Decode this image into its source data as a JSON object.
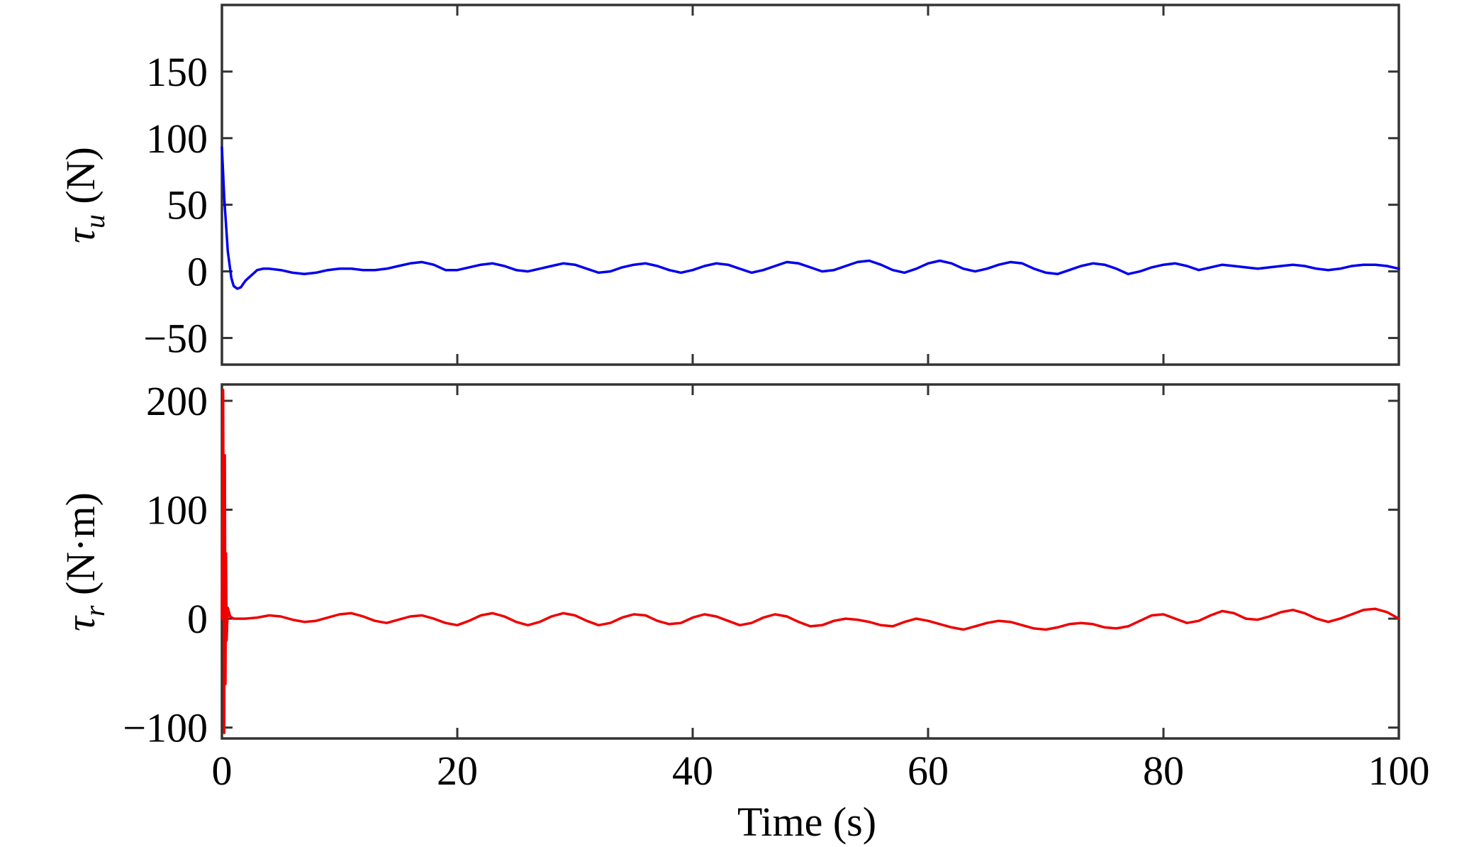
{
  "chart_data": [
    {
      "type": "line",
      "ylabel": {
        "symbol": "τ",
        "subscript": "u",
        "unit": " (N)"
      },
      "xlim": [
        0,
        100
      ],
      "ylim": [
        -70,
        200
      ],
      "yticks": [
        -50,
        0,
        50,
        100,
        150
      ],
      "ytick_labels": [
        "−50",
        "0",
        "50",
        "100",
        "150"
      ],
      "grid": false,
      "series": [
        {
          "color": "#0000ee",
          "x": [
            0,
            0.2,
            0.5,
            0.8,
            1.0,
            1.3,
            1.6,
            2.0,
            2.5,
            3.0,
            3.5,
            4.0,
            5.0,
            6.0,
            7.0,
            8.0,
            9.0,
            10.0,
            11.0,
            12.0,
            13.0,
            14.0,
            15.0,
            16.0,
            17.0,
            18.0,
            19.0,
            20.0,
            21.0,
            22.0,
            23.0,
            24.0,
            25.0,
            26.0,
            27.0,
            28.0,
            29.0,
            30.0,
            31.0,
            32.0,
            33.0,
            34.0,
            35.0,
            36.0,
            37.0,
            38.0,
            39.0,
            40.0,
            41.0,
            42.0,
            43.0,
            44.0,
            45.0,
            46.0,
            47.0,
            48.0,
            49.0,
            50.0,
            51.0,
            52.0,
            53.0,
            54.0,
            55.0,
            56.0,
            57.0,
            58.0,
            59.0,
            60.0,
            61.0,
            62.0,
            63.0,
            64.0,
            65.0,
            66.0,
            67.0,
            68.0,
            69.0,
            70.0,
            71.0,
            72.0,
            73.0,
            74.0,
            75.0,
            76.0,
            77.0,
            78.0,
            79.0,
            80.0,
            81.0,
            82.0,
            83.0,
            84.0,
            85.0,
            86.0,
            87.0,
            88.0,
            89.0,
            90.0,
            91.0,
            92.0,
            93.0,
            94.0,
            95.0,
            96.0,
            97.0,
            98.0,
            99.0,
            100.0
          ],
          "y": [
            93,
            55,
            15,
            -5,
            -11,
            -13,
            -12,
            -7,
            -3,
            1,
            2,
            2,
            1,
            -1,
            -2,
            -1,
            1,
            2,
            2,
            1,
            1,
            2,
            4,
            6,
            7,
            5,
            1,
            1,
            3,
            5,
            6,
            4,
            1,
            0,
            2,
            4,
            6,
            5,
            2,
            -1,
            0,
            3,
            5,
            6,
            4,
            1,
            -1,
            1,
            4,
            6,
            5,
            2,
            -1,
            1,
            4,
            7,
            6,
            3,
            0,
            1,
            4,
            7,
            8,
            5,
            1,
            -1,
            2,
            6,
            8,
            6,
            2,
            0,
            2,
            5,
            7,
            6,
            2,
            -1,
            -2,
            1,
            4,
            6,
            5,
            2,
            -2,
            0,
            3,
            5,
            6,
            4,
            1,
            3,
            5,
            4,
            3,
            2,
            3,
            4,
            5,
            4,
            2,
            1,
            2,
            4,
            5,
            5,
            4,
            2
          ]
        }
      ]
    },
    {
      "type": "line",
      "ylabel": {
        "symbol": "τ",
        "subscript": "r",
        "unit": " (N·m)"
      },
      "xlabel": "Time (s)",
      "xlim": [
        0,
        100
      ],
      "ylim": [
        -110,
        215
      ],
      "xticks": [
        0,
        20,
        40,
        60,
        80,
        100
      ],
      "xtick_labels": [
        "0",
        "20",
        "40",
        "60",
        "80",
        "100"
      ],
      "yticks": [
        -100,
        0,
        100,
        200
      ],
      "ytick_labels": [
        "−100",
        "0",
        "100",
        "200"
      ],
      "grid": false,
      "series": [
        {
          "color": "#ee0000",
          "x": [
            0,
            0.1,
            0.2,
            0.25,
            0.3,
            0.35,
            0.4,
            0.5,
            0.7,
            1.0,
            1.5,
            2.0,
            3.0,
            4.0,
            5.0,
            6.0,
            7.0,
            8.0,
            9.0,
            10.0,
            11.0,
            12.0,
            13.0,
            14.0,
            15.0,
            16.0,
            17.0,
            18.0,
            19.0,
            20.0,
            21.0,
            22.0,
            23.0,
            24.0,
            25.0,
            26.0,
            27.0,
            28.0,
            29.0,
            30.0,
            31.0,
            32.0,
            33.0,
            34.0,
            35.0,
            36.0,
            37.0,
            38.0,
            39.0,
            40.0,
            41.0,
            42.0,
            43.0,
            44.0,
            45.0,
            46.0,
            47.0,
            48.0,
            49.0,
            50.0,
            51.0,
            52.0,
            53.0,
            54.0,
            55.0,
            56.0,
            57.0,
            58.0,
            59.0,
            60.0,
            61.0,
            62.0,
            63.0,
            64.0,
            65.0,
            66.0,
            67.0,
            68.0,
            69.0,
            70.0,
            71.0,
            72.0,
            73.0,
            74.0,
            75.0,
            76.0,
            77.0,
            78.0,
            79.0,
            80.0,
            81.0,
            82.0,
            83.0,
            84.0,
            85.0,
            86.0,
            87.0,
            88.0,
            89.0,
            90.0,
            91.0,
            92.0,
            93.0,
            94.0,
            95.0,
            96.0,
            97.0,
            98.0,
            99.0,
            100.0
          ],
          "y": [
            0,
            210,
            -105,
            150,
            -60,
            60,
            -20,
            10,
            2,
            0,
            0,
            0,
            1,
            3,
            2,
            -1,
            -3,
            -2,
            1,
            4,
            5,
            2,
            -2,
            -4,
            -1,
            2,
            3,
            0,
            -4,
            -6,
            -2,
            3,
            5,
            2,
            -3,
            -6,
            -3,
            2,
            5,
            3,
            -2,
            -6,
            -4,
            1,
            4,
            3,
            -2,
            -5,
            -4,
            1,
            4,
            2,
            -2,
            -6,
            -4,
            1,
            4,
            2,
            -3,
            -7,
            -6,
            -2,
            0,
            -1,
            -3,
            -6,
            -7,
            -3,
            0,
            -2,
            -5,
            -8,
            -10,
            -7,
            -4,
            -2,
            -3,
            -6,
            -9,
            -10,
            -8,
            -5,
            -4,
            -5,
            -8,
            -9,
            -7,
            -2,
            3,
            4,
            0,
            -4,
            -2,
            3,
            7,
            5,
            0,
            -1,
            2,
            6,
            8,
            5,
            0,
            -3,
            0,
            4,
            8,
            9,
            6,
            0
          ]
        }
      ]
    }
  ]
}
